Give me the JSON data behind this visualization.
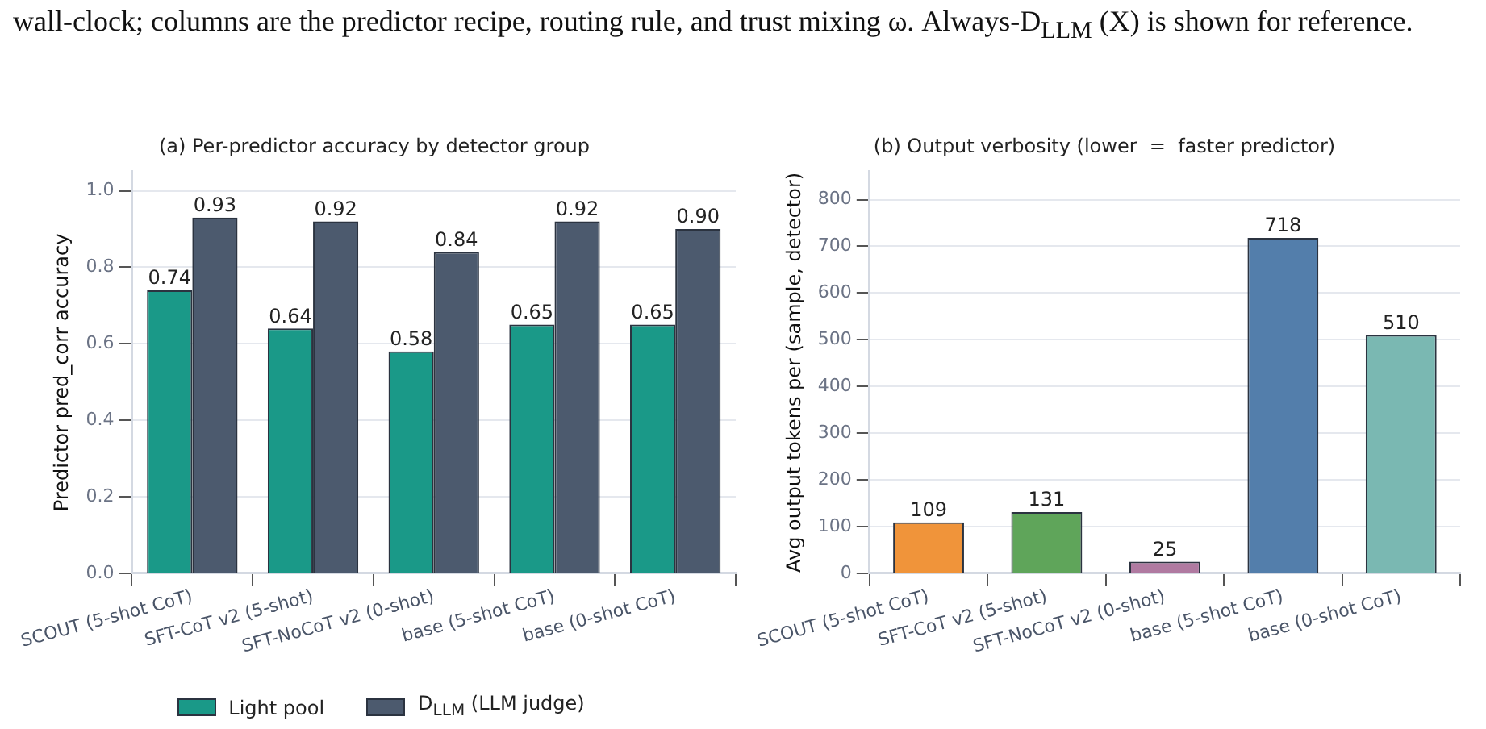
{
  "chart_data": [
    {
      "type": "bar",
      "title": "(a) Per-predictor accuracy by detector group",
      "ylabel": "Predictor pred_corr accuracy",
      "annotations": [
        "wall-clock; columns are the predictor recipe, routing rule, and trust mixing ω. Always-D$_{LLM}$ (X) is shown for reference."
      ],
      "categories": [
        "SCOUT (5-shot CoT)",
        "SFT-CoT v2 (5-shot)",
        "SFT-NoCoT v2 (0-shot)",
        "base (5-shot CoT)",
        "base (0-shot CoT)"
      ],
      "series": [
        {
          "name": "Light pool",
          "color": "#1a9988",
          "values": [
            0.74,
            0.64,
            0.58,
            0.65,
            0.65
          ],
          "value_labels": [
            "0.74",
            "0.64",
            "0.58",
            "0.65",
            "0.65"
          ]
        },
        {
          "name": "D$_{LLM}$ (LLM judge)",
          "color": "#4c5a6e",
          "values": [
            0.93,
            0.92,
            0.84,
            0.92,
            0.9
          ],
          "value_labels": [
            "0.93",
            "0.92",
            "0.84",
            "0.92",
            "0.90"
          ]
        }
      ],
      "ylim": [
        0,
        1.05
      ],
      "yticks": [
        {
          "value": 0,
          "label": "0.0"
        },
        {
          "value": 0.2,
          "label": "0.2"
        },
        {
          "value": 0.4,
          "label": "0.4"
        },
        {
          "value": 0.6,
          "label": "0.6"
        },
        {
          "value": 0.8,
          "label": "0.8"
        },
        {
          "value": 1,
          "label": "1.0"
        }
      ],
      "grid": "y",
      "legend": "bottom"
    },
    {
      "type": "bar",
      "title": "(b) Output verbosity (lower  =  faster predictor)",
      "ylabel": "Avg output tokens per (sample, detector)",
      "categories": [
        "SCOUT (5-shot CoT)",
        "SFT-CoT v2 (5-shot)",
        "SFT-NoCoT v2 (0-shot)",
        "base (5-shot CoT)",
        "base (0-shot CoT)"
      ],
      "values": [
        109,
        131,
        25,
        718,
        510
      ],
      "colors": [
        "#f0943a",
        "#5fa55a",
        "#b07aa1",
        "#537eab",
        "#7ab8b2"
      ],
      "data_labels": true,
      "ylim": [
        0,
        860
      ],
      "yticks": [
        0,
        100,
        200,
        300,
        400,
        500,
        600,
        700,
        800
      ],
      "grid": "y"
    }
  ]
}
